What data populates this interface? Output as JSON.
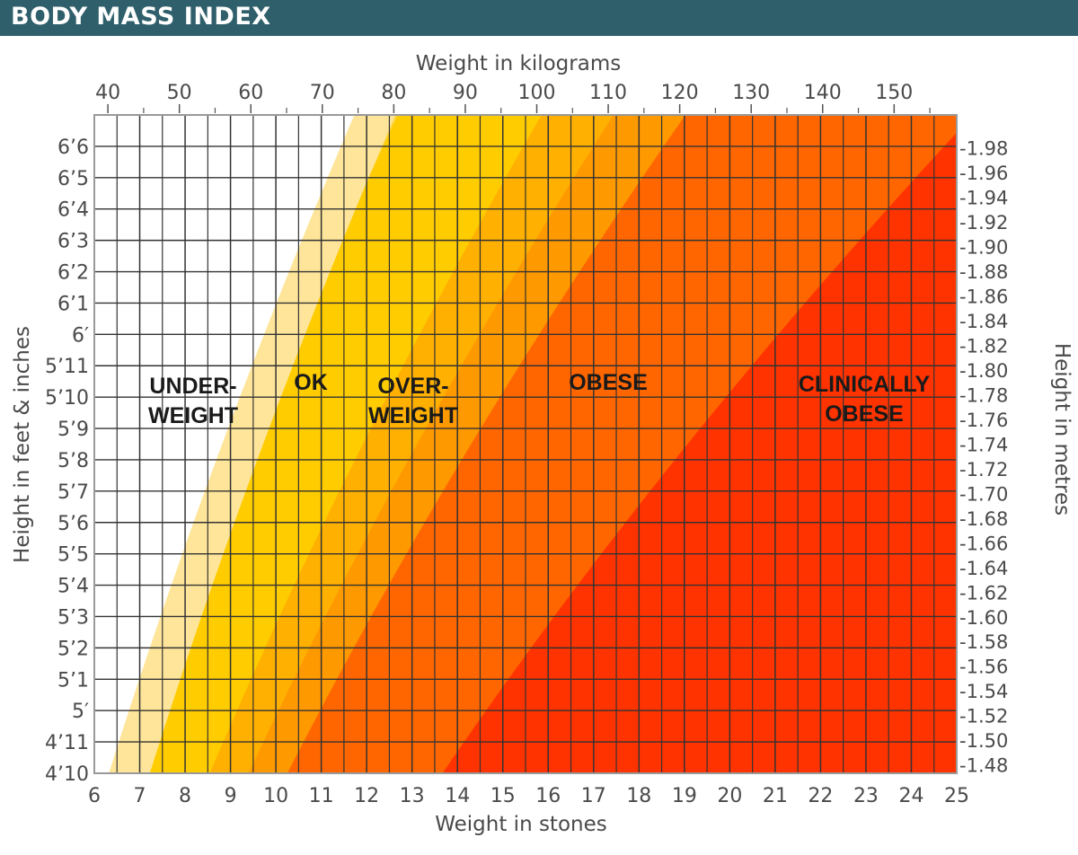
{
  "header": {
    "title": "BODY MASS INDEX"
  },
  "chart_data": {
    "type": "area",
    "x_top_label": "Weight in kilograms",
    "x_bottom_label": "Weight in stones",
    "y_left_label": "Height in feet & inches",
    "y_right_label": "Height in metres",
    "x_range_stones": [
      6,
      25
    ],
    "y_range_inches": [
      58,
      79
    ],
    "kg_ticks": [
      "40",
      "50",
      "60",
      "70",
      "80",
      "90",
      "100",
      "110",
      "120",
      "130",
      "140",
      "150"
    ],
    "stone_ticks": [
      "6",
      "7",
      "8",
      "9",
      "10",
      "11",
      "12",
      "13",
      "14",
      "15",
      "16",
      "17",
      "18",
      "19",
      "20",
      "21",
      "22",
      "23",
      "24",
      "25"
    ],
    "feet_inch_ticks": [
      "4’10",
      "4’11",
      "5′",
      "5’1",
      "5’2",
      "5’3",
      "5’4",
      "5’5",
      "5’6",
      "5’7",
      "5’8",
      "5’9",
      "5’10",
      "5’11",
      "6′",
      "6’1",
      "6’2",
      "6’3",
      "6’4",
      "6’5",
      "6’6"
    ],
    "metre_ticks": [
      "-1.48",
      "-1.50",
      "-1.52",
      "-1.54",
      "-1.56",
      "-1.58",
      "-1.60",
      "-1.62",
      "-1.64",
      "-1.66",
      "-1.68",
      "-1.70",
      "-1.72",
      "-1.74",
      "-1.76",
      "-1.78",
      "-1.80",
      "-1.82",
      "-1.84",
      "-1.86",
      "-1.88",
      "-1.90",
      "-1.92",
      "-1.94",
      "-1.96",
      "-1.98"
    ],
    "zones": [
      {
        "name": "UNDERWEIGHT",
        "label_lines": [
          "UNDER-",
          "WEIGHT"
        ],
        "bmi_max": 18.5,
        "color": "#ffffff"
      },
      {
        "name": "OK",
        "label_lines": [
          "OK"
        ],
        "bmi_max": 25,
        "color": "#ffcc00"
      },
      {
        "name": "OVERWEIGHT",
        "label_lines": [
          "OVER-",
          "WEIGHT"
        ],
        "bmi_max": 30,
        "color": "#ff9900"
      },
      {
        "name": "OBESE",
        "label_lines": [
          "OBESE"
        ],
        "bmi_max": 40,
        "color": "#ff6600"
      },
      {
        "name": "CLINICALLY OBESE",
        "label_lines": [
          "CLINICALLY",
          "OBESE"
        ],
        "bmi_max": null,
        "color": "#ff3300"
      }
    ],
    "grid": true
  }
}
